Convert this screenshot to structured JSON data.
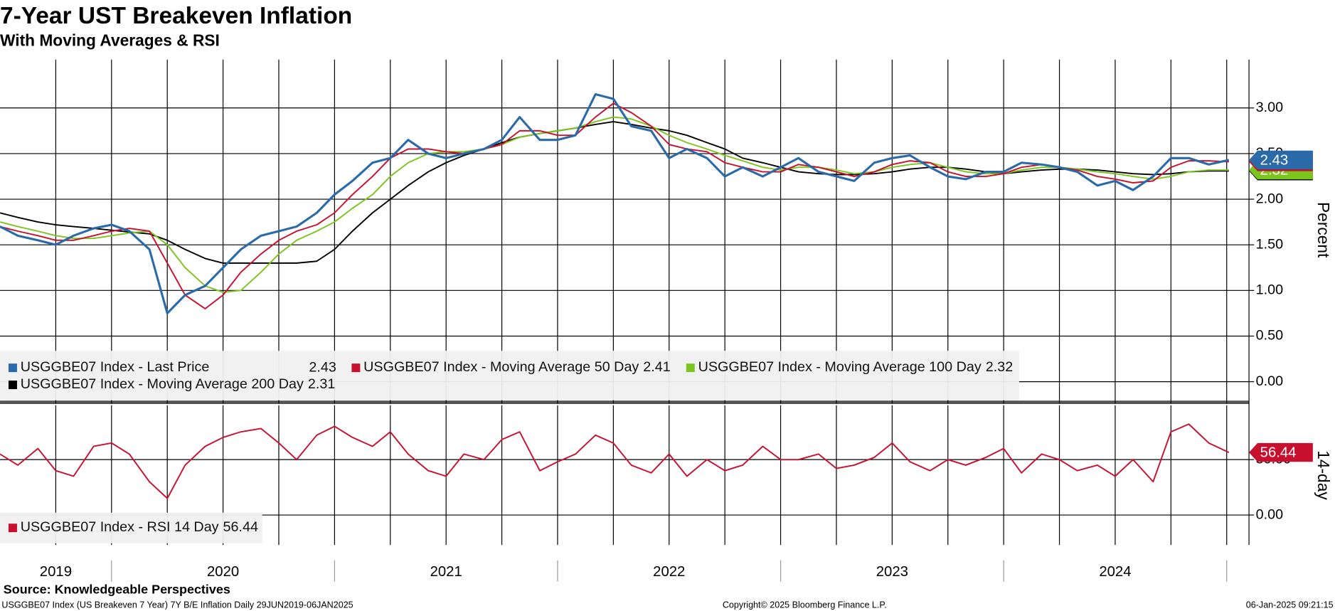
{
  "chart_data": [
    {
      "type": "line",
      "title": "7-Year UST Breakeven Inflation",
      "subtitle": "With Moving Averages & RSI",
      "ylabel": "Percent",
      "x": [
        2019.5,
        2019.58,
        2019.67,
        2019.75,
        2019.83,
        2019.92,
        2020,
        2020.08,
        2020.17,
        2020.25,
        2020.33,
        2020.42,
        2020.5,
        2020.58,
        2020.67,
        2020.75,
        2020.83,
        2020.92,
        2021,
        2021.08,
        2021.17,
        2021.25,
        2021.33,
        2021.42,
        2021.5,
        2021.58,
        2021.67,
        2021.75,
        2021.83,
        2021.92,
        2022,
        2022.08,
        2022.17,
        2022.25,
        2022.33,
        2022.42,
        2022.5,
        2022.58,
        2022.67,
        2022.75,
        2022.83,
        2022.92,
        2023,
        2023.08,
        2023.17,
        2023.25,
        2023.33,
        2023.42,
        2023.5,
        2023.58,
        2023.67,
        2023.75,
        2023.83,
        2023.92,
        2024,
        2024.08,
        2024.17,
        2024.25,
        2024.33,
        2024.42,
        2024.5,
        2024.58,
        2024.67,
        2024.75,
        2024.83,
        2024.92,
        2025.01
      ],
      "series": [
        {
          "name": "USGGBE07 Index - Last Price",
          "color": "#2a6aa8",
          "values": [
            1.7,
            1.6,
            1.55,
            1.5,
            1.6,
            1.68,
            1.72,
            1.65,
            1.45,
            0.75,
            0.95,
            1.05,
            1.25,
            1.45,
            1.6,
            1.65,
            1.7,
            1.85,
            2.05,
            2.2,
            2.4,
            2.45,
            2.65,
            2.5,
            2.45,
            2.5,
            2.55,
            2.65,
            2.9,
            2.65,
            2.65,
            2.7,
            3.15,
            3.1,
            2.8,
            2.75,
            2.45,
            2.55,
            2.45,
            2.25,
            2.35,
            2.25,
            2.35,
            2.45,
            2.3,
            2.25,
            2.2,
            2.4,
            2.45,
            2.48,
            2.35,
            2.25,
            2.22,
            2.3,
            2.3,
            2.4,
            2.38,
            2.35,
            2.3,
            2.15,
            2.2,
            2.1,
            2.25,
            2.45,
            2.45,
            2.38,
            2.43
          ]
        },
        {
          "name": "USGGBE07 Index - Moving Average 50 Day",
          "color": "#c8102e",
          "values": [
            1.7,
            1.65,
            1.6,
            1.55,
            1.55,
            1.6,
            1.65,
            1.68,
            1.65,
            1.3,
            0.95,
            0.8,
            0.95,
            1.2,
            1.4,
            1.55,
            1.65,
            1.72,
            1.85,
            2.05,
            2.25,
            2.45,
            2.55,
            2.55,
            2.52,
            2.5,
            2.55,
            2.6,
            2.75,
            2.75,
            2.7,
            2.7,
            2.9,
            3.05,
            2.95,
            2.8,
            2.6,
            2.55,
            2.52,
            2.4,
            2.35,
            2.3,
            2.3,
            2.38,
            2.35,
            2.3,
            2.25,
            2.3,
            2.38,
            2.42,
            2.4,
            2.3,
            2.25,
            2.25,
            2.28,
            2.35,
            2.38,
            2.35,
            2.32,
            2.25,
            2.22,
            2.18,
            2.2,
            2.35,
            2.42,
            2.42,
            2.41
          ]
        },
        {
          "name": "USGGBE07 Index - Moving Average 100 Day",
          "color": "#7cc51c",
          "values": [
            1.75,
            1.7,
            1.65,
            1.6,
            1.57,
            1.57,
            1.6,
            1.63,
            1.65,
            1.5,
            1.25,
            1.05,
            0.98,
            1.0,
            1.2,
            1.4,
            1.55,
            1.65,
            1.75,
            1.9,
            2.05,
            2.25,
            2.4,
            2.5,
            2.52,
            2.52,
            2.55,
            2.6,
            2.68,
            2.72,
            2.75,
            2.78,
            2.85,
            2.9,
            2.88,
            2.8,
            2.7,
            2.62,
            2.55,
            2.48,
            2.42,
            2.35,
            2.32,
            2.35,
            2.35,
            2.32,
            2.28,
            2.3,
            2.35,
            2.38,
            2.4,
            2.35,
            2.3,
            2.28,
            2.28,
            2.32,
            2.35,
            2.35,
            2.33,
            2.3,
            2.28,
            2.25,
            2.22,
            2.25,
            2.3,
            2.32,
            2.32
          ]
        },
        {
          "name": "USGGBE07 Index - Moving Average 200 Day",
          "color": "#000000",
          "values": [
            1.85,
            1.8,
            1.75,
            1.72,
            1.7,
            1.68,
            1.66,
            1.64,
            1.62,
            1.55,
            1.45,
            1.35,
            1.3,
            1.3,
            1.3,
            1.3,
            1.3,
            1.32,
            1.45,
            1.65,
            1.85,
            2.0,
            2.15,
            2.3,
            2.4,
            2.48,
            2.55,
            2.62,
            2.68,
            2.72,
            2.75,
            2.78,
            2.82,
            2.85,
            2.82,
            2.78,
            2.75,
            2.7,
            2.62,
            2.55,
            2.45,
            2.4,
            2.35,
            2.3,
            2.28,
            2.27,
            2.27,
            2.28,
            2.3,
            2.33,
            2.35,
            2.35,
            2.33,
            2.3,
            2.28,
            2.3,
            2.32,
            2.33,
            2.33,
            2.32,
            2.3,
            2.28,
            2.27,
            2.28,
            2.3,
            2.31,
            2.31
          ]
        }
      ],
      "xlim": [
        2019.5,
        2025.1
      ],
      "xgrid": [
        2019.75,
        2020,
        2020.25,
        2020.5,
        2020.75,
        2021,
        2021.25,
        2021.5,
        2021.75,
        2022,
        2022.25,
        2022.5,
        2022.75,
        2023,
        2023.25,
        2023.5,
        2023.75,
        2024,
        2024.25,
        2024.5,
        2024.75,
        2025
      ],
      "ylim": [
        -0.24,
        3.53
      ],
      "yticks": [
        {
          "value": 0,
          "label": "0.00"
        },
        {
          "value": 0.5,
          "label": "0.50"
        },
        {
          "value": 1,
          "label": "1.00"
        },
        {
          "value": 1.5,
          "label": "1.50"
        },
        {
          "value": 2,
          "label": "2.00"
        },
        {
          "value": 2.5,
          "label": "2.50"
        },
        {
          "value": 3,
          "label": "3.00"
        }
      ],
      "grid": true
    },
    {
      "type": "line",
      "ylabel": "14-day",
      "x": [
        2019.5,
        2019.58,
        2019.67,
        2019.75,
        2019.83,
        2019.92,
        2020,
        2020.08,
        2020.17,
        2020.25,
        2020.33,
        2020.42,
        2020.5,
        2020.58,
        2020.67,
        2020.75,
        2020.83,
        2020.92,
        2021,
        2021.08,
        2021.17,
        2021.25,
        2021.33,
        2021.42,
        2021.5,
        2021.58,
        2021.67,
        2021.75,
        2021.83,
        2021.92,
        2022,
        2022.08,
        2022.17,
        2022.25,
        2022.33,
        2022.42,
        2022.5,
        2022.58,
        2022.67,
        2022.75,
        2022.83,
        2022.92,
        2023,
        2023.08,
        2023.17,
        2023.25,
        2023.33,
        2023.42,
        2023.5,
        2023.58,
        2023.67,
        2023.75,
        2023.83,
        2023.92,
        2024,
        2024.08,
        2024.17,
        2024.25,
        2024.33,
        2024.42,
        2024.5,
        2024.58,
        2024.67,
        2024.75,
        2024.83,
        2024.92,
        2025.01
      ],
      "series": [
        {
          "name": "USGGBE07 Index - RSI 14 Day",
          "color": "#c8102e",
          "values": [
            55,
            45,
            60,
            40,
            35,
            62,
            65,
            55,
            30,
            15,
            45,
            62,
            70,
            75,
            78,
            65,
            50,
            72,
            80,
            70,
            62,
            75,
            55,
            40,
            35,
            55,
            50,
            68,
            75,
            40,
            48,
            55,
            72,
            65,
            45,
            38,
            55,
            35,
            50,
            40,
            45,
            62,
            50,
            50,
            55,
            42,
            45,
            52,
            65,
            48,
            40,
            50,
            45,
            52,
            60,
            38,
            55,
            50,
            40,
            45,
            35,
            50,
            30,
            75,
            82,
            65,
            56.44
          ]
        }
      ],
      "xlim": [
        2019.5,
        2025.1
      ],
      "xgrid": [
        2019.75,
        2020,
        2020.25,
        2020.5,
        2020.75,
        2021,
        2021.25,
        2021.5,
        2021.75,
        2022,
        2022.25,
        2022.5,
        2022.75,
        2023,
        2023.25,
        2023.5,
        2023.75,
        2024,
        2024.25,
        2024.5,
        2024.75,
        2025
      ],
      "xticks": [
        {
          "value": 2019.75,
          "label": "2019"
        },
        {
          "value": 2020.5,
          "label": "2020"
        },
        {
          "value": 2021.5,
          "label": "2021"
        },
        {
          "value": 2022.5,
          "label": "2022"
        },
        {
          "value": 2023.5,
          "label": "2023"
        },
        {
          "value": 2024.5,
          "label": "2024"
        }
      ],
      "ylim": [
        -27,
        99
      ],
      "yticks": [
        {
          "value": 0,
          "label": "0.00"
        },
        {
          "value": 50,
          "label": "50.00"
        }
      ],
      "grid": true
    }
  ],
  "footer": {
    "source": "Source: Knowledgeable Perspectives",
    "description": "USGGBE07 Index (US Breakeven 7 Year) 7Y B/E Inflation  Daily 29JUN2019-06JAN2025",
    "copyright": "Copyright© 2025 Bloomberg Finance L.P.",
    "timestamp": "06-Jan-2025 09:21:15"
  }
}
